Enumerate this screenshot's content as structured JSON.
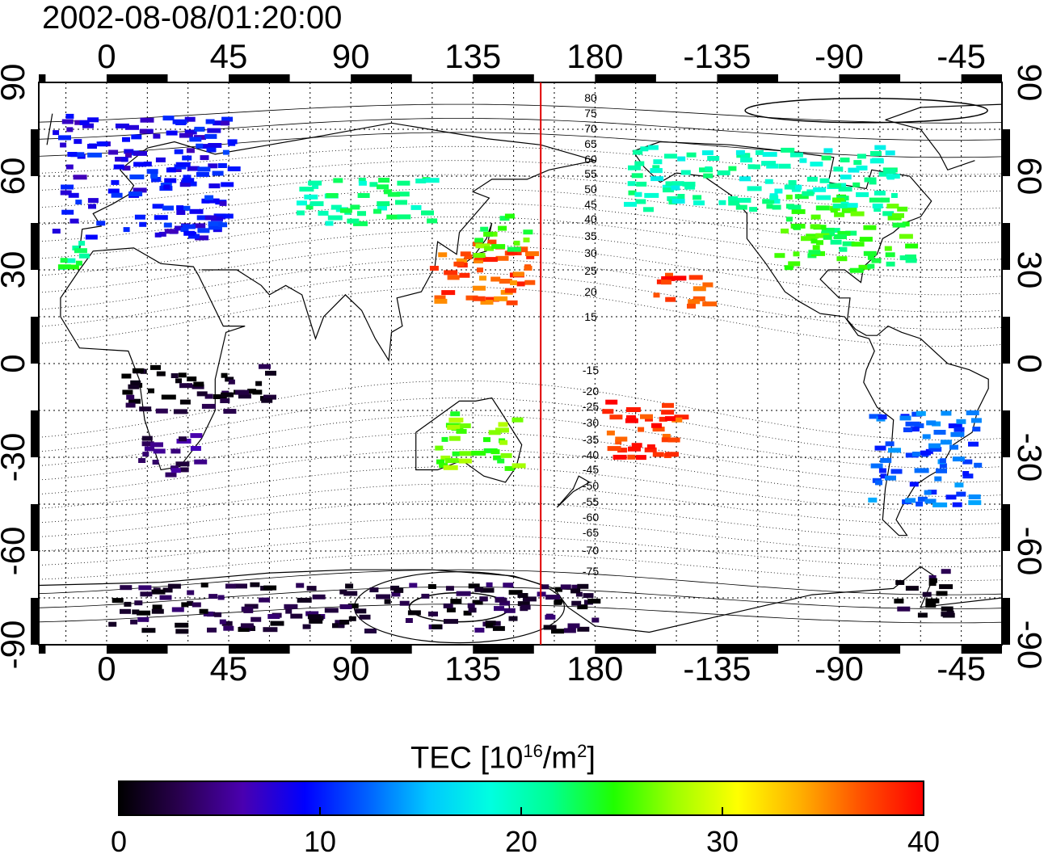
{
  "title": "2002-08-08/01:20:00",
  "map": {
    "x_ticks_top": [
      "0",
      "45",
      "90",
      "135",
      "180",
      "-135",
      "-90",
      "-45"
    ],
    "x_ticks_bottom": [
      "0",
      "45",
      "90",
      "135",
      "180",
      "-135",
      "-90",
      "-45"
    ],
    "y_ticks_left": [
      "90",
      "60",
      "30",
      "0",
      "-30",
      "-60",
      "-90"
    ],
    "y_ticks_right": [
      "90",
      "60",
      "30",
      "0",
      "-30",
      "-60",
      "-90"
    ],
    "terminator_longitude": 160,
    "contour_labels_north": [
      "80",
      "75",
      "70",
      "65",
      "60",
      "55",
      "50",
      "45",
      "40",
      "35",
      "30",
      "25",
      "20",
      "15"
    ],
    "contour_labels_south": [
      "-15",
      "-20",
      "-25",
      "-30",
      "-35",
      "-40",
      "-45",
      "-50",
      "-55",
      "-60",
      "-65",
      "-70",
      "-75"
    ]
  },
  "colorbar": {
    "title_main": "TEC  [10",
    "title_exp1": "16",
    "title_mid": "/m",
    "title_exp2": "2",
    "title_end": "]",
    "ticks": [
      "0",
      "10",
      "20",
      "30",
      "40"
    ],
    "min": 0,
    "max": 40,
    "colors": [
      "#000000",
      "#2a0050",
      "#4a00b0",
      "#0000ff",
      "#0060ff",
      "#00c8ff",
      "#00ffe0",
      "#00ff90",
      "#20ff00",
      "#a0ff00",
      "#ffff00",
      "#ffb000",
      "#ff5000",
      "#ff0000"
    ]
  },
  "chart_data": {
    "type": "heatmap",
    "x_range": [
      -25,
      330
    ],
    "y_range": [
      -90,
      90
    ],
    "value_range": [
      0,
      40
    ],
    "regions": [
      {
        "lon": [
          -20,
          45
        ],
        "lat": [
          40,
          80
        ],
        "tec": 9
      },
      {
        "lon": [
          -18,
          -10
        ],
        "lat": [
          30,
          40
        ],
        "tec": 22
      },
      {
        "lon": [
          10,
          35
        ],
        "lat": [
          -35,
          -22
        ],
        "tec": 4
      },
      {
        "lon": [
          5,
          60
        ],
        "lat": [
          -15,
          0
        ],
        "tec": 1
      },
      {
        "lon": [
          70,
          120
        ],
        "lat": [
          45,
          60
        ],
        "tec": 21
      },
      {
        "lon": [
          115,
          155
        ],
        "lat": [
          20,
          40
        ],
        "tec": 37
      },
      {
        "lon": [
          135,
          155
        ],
        "lat": [
          35,
          48
        ],
        "tec": 25
      },
      {
        "lon": [
          120,
          150
        ],
        "lat": [
          -35,
          -15
        ],
        "tec": 26
      },
      {
        "lon": [
          200,
          220
        ],
        "lat": [
          18,
          30
        ],
        "tec": 38
      },
      {
        "lon": [
          180,
          210
        ],
        "lat": [
          -30,
          -10
        ],
        "tec": 38
      },
      {
        "lon": [
          245,
          295
        ],
        "lat": [
          30,
          55
        ],
        "tec": 24
      },
      {
        "lon": [
          190,
          290
        ],
        "lat": [
          50,
          70
        ],
        "tec": 20
      },
      {
        "lon": [
          280,
          320
        ],
        "lat": [
          -45,
          -15
        ],
        "tec": 12
      },
      {
        "lon": [
          0,
          180
        ],
        "lat": [
          -85,
          -70
        ],
        "tec": 2
      },
      {
        "lon": [
          290,
          310
        ],
        "lat": [
          -80,
          -65
        ],
        "tec": 1
      }
    ]
  }
}
